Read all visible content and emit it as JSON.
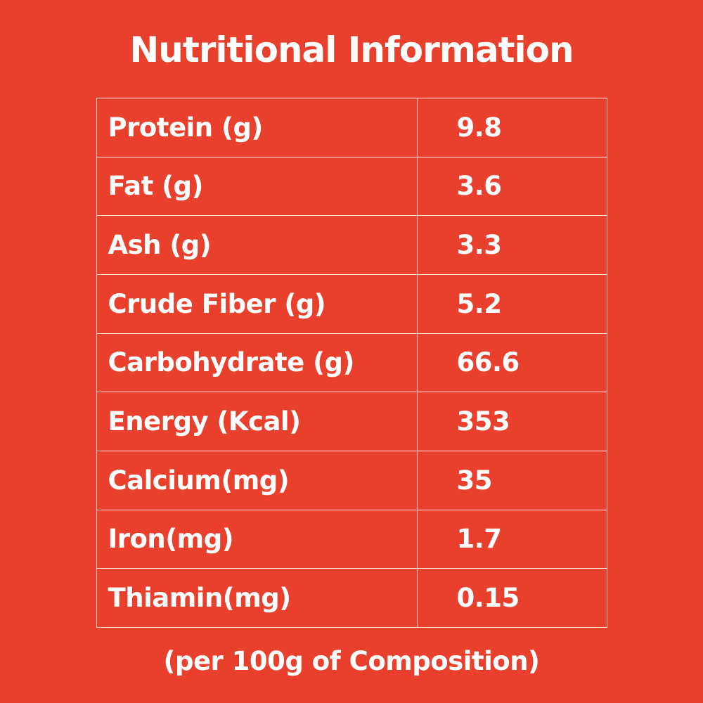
{
  "page": {
    "background_color": "#E8402C",
    "text_color": "#FFFFFF",
    "table_border_color": "#FFF6EE"
  },
  "header": {
    "title": "Nutritional Information"
  },
  "footer": {
    "note": "(per 100g of Composition)"
  },
  "chart_data": {
    "type": "table",
    "title": "Nutritional Information",
    "caption": "(per 100g of Composition)",
    "rows": [
      {
        "label": "Protein (g)",
        "value": "9.8"
      },
      {
        "label": "Fat (g)",
        "value": "3.6"
      },
      {
        "label": "Ash (g)",
        "value": "3.3"
      },
      {
        "label": "Crude Fiber (g)",
        "value": "5.2"
      },
      {
        "label": "Carbohydrate (g)",
        "value": "66.6"
      },
      {
        "label": "Energy (Kcal)",
        "value": "353"
      },
      {
        "label": "Calcium(mg)",
        "value": "35"
      },
      {
        "label": "Iron(mg)",
        "value": "1.7"
      },
      {
        "label": "Thiamin(mg)",
        "value": "0.15"
      }
    ]
  }
}
